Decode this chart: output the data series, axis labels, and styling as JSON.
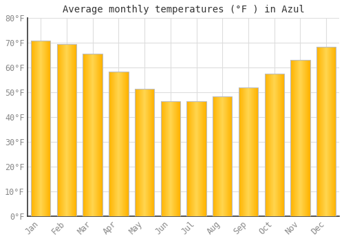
{
  "title": "Average monthly temperatures (°F ) in Azul",
  "months": [
    "Jan",
    "Feb",
    "Mar",
    "Apr",
    "May",
    "Jun",
    "Jul",
    "Aug",
    "Sep",
    "Oct",
    "Nov",
    "Dec"
  ],
  "values": [
    71,
    69.5,
    65.5,
    58.5,
    51.5,
    46.5,
    46.5,
    48.5,
    52,
    57.5,
    63,
    68.5
  ],
  "bar_color_left": "#FFB300",
  "bar_color_center": "#FFCA28",
  "bar_color_right": "#FFB300",
  "bar_edge_color": "#BDBDBD",
  "background_color": "#FFFFFF",
  "plot_bg_color": "#FFFFFF",
  "grid_color": "#DDDDDD",
  "text_color": "#888888",
  "axis_color": "#333333",
  "ylim": [
    0,
    80
  ],
  "yticks": [
    0,
    10,
    20,
    30,
    40,
    50,
    60,
    70,
    80
  ],
  "title_fontsize": 10,
  "tick_fontsize": 8.5,
  "bar_width": 0.75
}
